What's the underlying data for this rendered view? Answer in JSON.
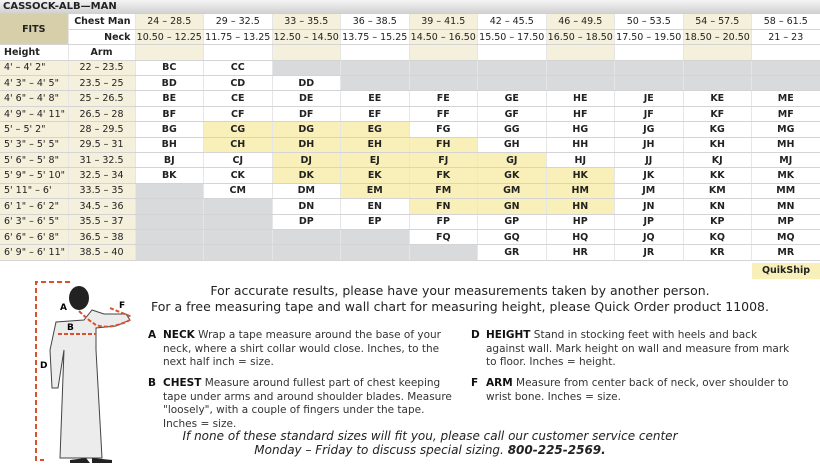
{
  "title": "CASSOCK-ALB—MAN",
  "header": {
    "fits": "FITS",
    "chest_label": "Chest Man",
    "neck_label": "Neck",
    "height_label": "Height",
    "arm_label": "Arm",
    "chest": [
      "24 – 28.5",
      "29 – 32.5",
      "33 – 35.5",
      "36 – 38.5",
      "39 – 41.5",
      "42 – 45.5",
      "46 – 49.5",
      "50 – 53.5",
      "54 – 57.5",
      "58 – 61.5"
    ],
    "neck": [
      "10.50 – 12.25",
      "11.75 – 13.25",
      "12.50 – 14.50",
      "13.75 – 15.25",
      "14.50 – 16.50",
      "15.50 – 17.50",
      "16.50 – 18.50",
      "17.50 – 19.50",
      "18.50 – 20.50",
      "21 – 23"
    ]
  },
  "colors": {
    "cream": "#f5f0dc",
    "highlight": "#f8f0b8",
    "unavailable": "#d9dadb",
    "fits": "#d7ceaa",
    "tape": "#d9512c"
  },
  "rows": [
    {
      "height": "4' – 4' 2\"",
      "arm": "22 – 23.5",
      "cells": [
        "BC",
        "CC",
        "",
        "",
        "",
        "",
        "",
        "",
        "",
        ""
      ]
    },
    {
      "height": "4' 3\" – 4' 5\"",
      "arm": "23.5 – 25",
      "cells": [
        "BD",
        "CD",
        "DD",
        "",
        "",
        "",
        "",
        "",
        "",
        ""
      ]
    },
    {
      "height": "4' 6\" – 4' 8\"",
      "arm": "25 – 26.5",
      "cells": [
        "BE",
        "CE",
        "DE",
        "EE",
        "FE",
        "GE",
        "HE",
        "JE",
        "KE",
        "ME"
      ]
    },
    {
      "height": "4' 9\" – 4' 11\"",
      "arm": "26.5 – 28",
      "cells": [
        "BF",
        "CF",
        "DF",
        "EF",
        "FF",
        "GF",
        "HF",
        "JF",
        "KF",
        "MF"
      ]
    },
    {
      "height": "5' – 5' 2\"",
      "arm": "28 – 29.5",
      "cells": [
        "BG",
        "CG",
        "DG",
        "EG",
        "FG",
        "GG",
        "HG",
        "JG",
        "KG",
        "MG"
      ]
    },
    {
      "height": "5' 3\" – 5' 5\"",
      "arm": "29.5 – 31",
      "cells": [
        "BH",
        "CH",
        "DH",
        "EH",
        "FH",
        "GH",
        "HH",
        "JH",
        "KH",
        "MH"
      ]
    },
    {
      "height": "5' 6\" – 5' 8\"",
      "arm": "31 – 32.5",
      "cells": [
        "BJ",
        "CJ",
        "DJ",
        "EJ",
        "FJ",
        "GJ",
        "HJ",
        "JJ",
        "KJ",
        "MJ"
      ]
    },
    {
      "height": "5' 9\" – 5' 10\"",
      "arm": "32.5 – 34",
      "cells": [
        "BK",
        "CK",
        "DK",
        "EK",
        "FK",
        "GK",
        "HK",
        "JK",
        "KK",
        "MK"
      ]
    },
    {
      "height": "5' 11\" – 6'",
      "arm": "33.5 – 35",
      "cells": [
        "",
        "CM",
        "DM",
        "EM",
        "FM",
        "GM",
        "HM",
        "JM",
        "KM",
        "MM"
      ]
    },
    {
      "height": "6' 1\" – 6' 2\"",
      "arm": "34.5 – 36",
      "cells": [
        "",
        "",
        "DN",
        "EN",
        "FN",
        "GN",
        "HN",
        "JN",
        "KN",
        "MN"
      ]
    },
    {
      "height": "6' 3\" – 6' 5\"",
      "arm": "35.5 – 37",
      "cells": [
        "",
        "",
        "DP",
        "EP",
        "FP",
        "GP",
        "HP",
        "JP",
        "KP",
        "MP"
      ]
    },
    {
      "height": "6' 6\" – 6' 8\"",
      "arm": "36.5 – 38",
      "cells": [
        "",
        "",
        "",
        "",
        "FQ",
        "GQ",
        "HQ",
        "JQ",
        "KQ",
        "MQ"
      ]
    },
    {
      "height": "6' 9\" – 6' 11\"",
      "arm": "38.5 – 40",
      "cells": [
        "",
        "",
        "",
        "",
        "",
        "GR",
        "HR",
        "JR",
        "KR",
        "MR"
      ]
    }
  ],
  "highlighted": [
    "CG",
    "DG",
    "EG",
    "CH",
    "DH",
    "EH",
    "FH",
    "DJ",
    "EJ",
    "FJ",
    "GJ",
    "DK",
    "EK",
    "FK",
    "GK",
    "HK",
    "EM",
    "FM",
    "GM",
    "HM",
    "FN",
    "GN",
    "HN"
  ],
  "quikship": "QuikShip",
  "notes": [
    "For accurate results, please have your measurements taken by another person.",
    "For a free measuring tape and wall chart for measuring height, please Quick Order product 11008."
  ],
  "figure_labels": {
    "a": "A",
    "b": "B",
    "d": "D",
    "f": "F"
  },
  "measurements": [
    {
      "key": "A",
      "name": "NECK",
      "text": "Wrap a tape measure around the base of your neck, where a shirt collar would close. Inches, to the next half inch = size."
    },
    {
      "key": "B",
      "name": "CHEST",
      "text": "Measure around fullest part of chest keeping tape under arms and around shoulder blades. Measure \"loosely\", with a couple of fingers under the tape. Inches = size."
    },
    {
      "key": "D",
      "name": "HEIGHT",
      "text": "Stand in stocking feet with heels and back against wall. Mark height on wall and measure from mark to floor. Inches = height."
    },
    {
      "key": "F",
      "name": "ARM",
      "text": "Measure from center back of neck, over shoulder to wrist bone. Inches = size."
    }
  ],
  "footer": {
    "line1": "If none of these standard sizes will fit you, please call our customer service center",
    "line2": "Monday – Friday to discuss special sizing.",
    "phone": "800-225-2569."
  }
}
